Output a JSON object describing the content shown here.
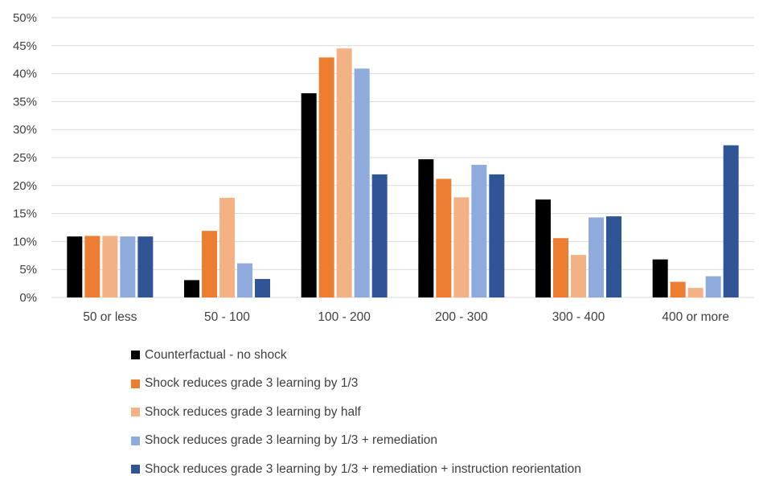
{
  "chart_data": {
    "type": "bar",
    "title": "",
    "xlabel": "",
    "ylabel": "",
    "categories": [
      "50 or less",
      "50 - 100",
      "100 - 200",
      "200 - 300",
      "300 - 400",
      "400 or more"
    ],
    "ylim": [
      0,
      50
    ],
    "yticks": [
      "0%",
      "5%",
      "10%",
      "15%",
      "20%",
      "25%",
      "30%",
      "35%",
      "40%",
      "45%",
      "50%"
    ],
    "ytick_values": [
      0,
      5,
      10,
      15,
      20,
      25,
      30,
      35,
      40,
      45,
      50
    ],
    "grid": true,
    "legend_position": "bottom",
    "series": [
      {
        "name": "Counterfactual - no shock",
        "color": "#000000",
        "values": [
          10.9,
          3.1,
          36.5,
          24.7,
          17.5,
          6.8
        ]
      },
      {
        "name": "Shock reduces grade 3 learning by 1/3",
        "color": "#ED7D31",
        "values": [
          11.0,
          11.9,
          42.9,
          21.2,
          10.6,
          2.8
        ]
      },
      {
        "name": "Shock reduces grade 3 learning by half",
        "color": "#F4B183",
        "values": [
          11.0,
          17.8,
          44.5,
          17.9,
          7.6,
          1.7
        ]
      },
      {
        "name": "Shock reduces grade 3 learning by 1/3 + remediation",
        "color": "#8FAADC",
        "values": [
          10.9,
          6.1,
          40.9,
          23.7,
          14.3,
          3.8
        ]
      },
      {
        "name": "Shock reduces grade 3 learning by 1/3 + remediation + instruction reorientation",
        "color": "#2F5597",
        "values": [
          10.9,
          3.3,
          22.0,
          22.0,
          14.5,
          27.2
        ]
      }
    ]
  }
}
